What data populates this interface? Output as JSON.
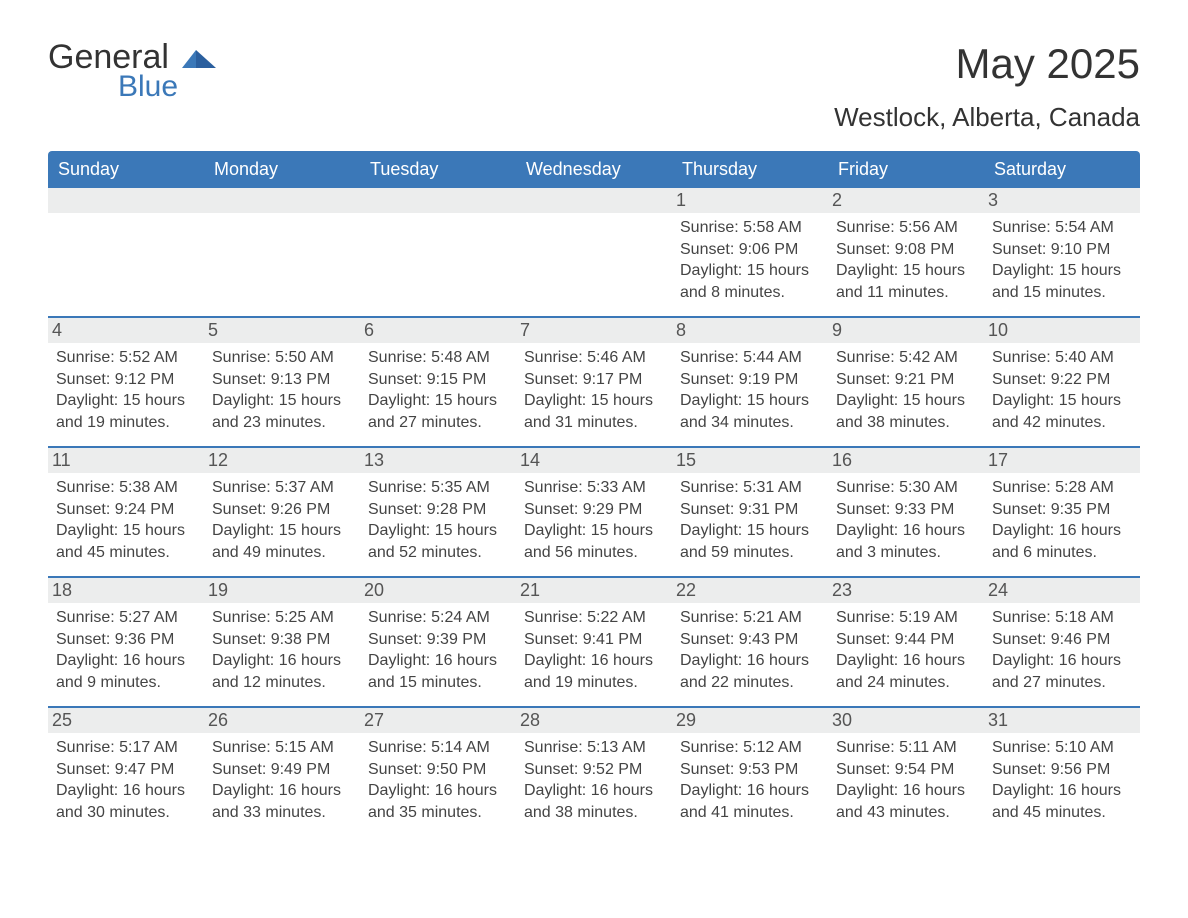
{
  "logo": {
    "word1": "General",
    "word2": "Blue",
    "text_color": "#333333",
    "accent_color": "#3b78b8"
  },
  "title": "May 2025",
  "location": "Westlock, Alberta, Canada",
  "colors": {
    "header_bg": "#3b78b8",
    "header_text": "#ffffff",
    "daynum_bg": "#eceded",
    "week_border": "#3b78b8",
    "body_text": "#444444",
    "background": "#ffffff"
  },
  "fonts": {
    "title_size_pt": 42,
    "location_size_pt": 26,
    "weekday_size_pt": 18,
    "daynum_size_pt": 18,
    "detail_size_pt": 16
  },
  "layout": {
    "columns": 7,
    "rows": 5
  },
  "weekdays": [
    "Sunday",
    "Monday",
    "Tuesday",
    "Wednesday",
    "Thursday",
    "Friday",
    "Saturday"
  ],
  "weeks": [
    [
      {
        "day": null
      },
      {
        "day": null
      },
      {
        "day": null
      },
      {
        "day": null
      },
      {
        "day": 1,
        "sunrise": "5:58 AM",
        "sunset": "9:06 PM",
        "daylight": "15 hours and 8 minutes."
      },
      {
        "day": 2,
        "sunrise": "5:56 AM",
        "sunset": "9:08 PM",
        "daylight": "15 hours and 11 minutes."
      },
      {
        "day": 3,
        "sunrise": "5:54 AM",
        "sunset": "9:10 PM",
        "daylight": "15 hours and 15 minutes."
      }
    ],
    [
      {
        "day": 4,
        "sunrise": "5:52 AM",
        "sunset": "9:12 PM",
        "daylight": "15 hours and 19 minutes."
      },
      {
        "day": 5,
        "sunrise": "5:50 AM",
        "sunset": "9:13 PM",
        "daylight": "15 hours and 23 minutes."
      },
      {
        "day": 6,
        "sunrise": "5:48 AM",
        "sunset": "9:15 PM",
        "daylight": "15 hours and 27 minutes."
      },
      {
        "day": 7,
        "sunrise": "5:46 AM",
        "sunset": "9:17 PM",
        "daylight": "15 hours and 31 minutes."
      },
      {
        "day": 8,
        "sunrise": "5:44 AM",
        "sunset": "9:19 PM",
        "daylight": "15 hours and 34 minutes."
      },
      {
        "day": 9,
        "sunrise": "5:42 AM",
        "sunset": "9:21 PM",
        "daylight": "15 hours and 38 minutes."
      },
      {
        "day": 10,
        "sunrise": "5:40 AM",
        "sunset": "9:22 PM",
        "daylight": "15 hours and 42 minutes."
      }
    ],
    [
      {
        "day": 11,
        "sunrise": "5:38 AM",
        "sunset": "9:24 PM",
        "daylight": "15 hours and 45 minutes."
      },
      {
        "day": 12,
        "sunrise": "5:37 AM",
        "sunset": "9:26 PM",
        "daylight": "15 hours and 49 minutes."
      },
      {
        "day": 13,
        "sunrise": "5:35 AM",
        "sunset": "9:28 PM",
        "daylight": "15 hours and 52 minutes."
      },
      {
        "day": 14,
        "sunrise": "5:33 AM",
        "sunset": "9:29 PM",
        "daylight": "15 hours and 56 minutes."
      },
      {
        "day": 15,
        "sunrise": "5:31 AM",
        "sunset": "9:31 PM",
        "daylight": "15 hours and 59 minutes."
      },
      {
        "day": 16,
        "sunrise": "5:30 AM",
        "sunset": "9:33 PM",
        "daylight": "16 hours and 3 minutes."
      },
      {
        "day": 17,
        "sunrise": "5:28 AM",
        "sunset": "9:35 PM",
        "daylight": "16 hours and 6 minutes."
      }
    ],
    [
      {
        "day": 18,
        "sunrise": "5:27 AM",
        "sunset": "9:36 PM",
        "daylight": "16 hours and 9 minutes."
      },
      {
        "day": 19,
        "sunrise": "5:25 AM",
        "sunset": "9:38 PM",
        "daylight": "16 hours and 12 minutes."
      },
      {
        "day": 20,
        "sunrise": "5:24 AM",
        "sunset": "9:39 PM",
        "daylight": "16 hours and 15 minutes."
      },
      {
        "day": 21,
        "sunrise": "5:22 AM",
        "sunset": "9:41 PM",
        "daylight": "16 hours and 19 minutes."
      },
      {
        "day": 22,
        "sunrise": "5:21 AM",
        "sunset": "9:43 PM",
        "daylight": "16 hours and 22 minutes."
      },
      {
        "day": 23,
        "sunrise": "5:19 AM",
        "sunset": "9:44 PM",
        "daylight": "16 hours and 24 minutes."
      },
      {
        "day": 24,
        "sunrise": "5:18 AM",
        "sunset": "9:46 PM",
        "daylight": "16 hours and 27 minutes."
      }
    ],
    [
      {
        "day": 25,
        "sunrise": "5:17 AM",
        "sunset": "9:47 PM",
        "daylight": "16 hours and 30 minutes."
      },
      {
        "day": 26,
        "sunrise": "5:15 AM",
        "sunset": "9:49 PM",
        "daylight": "16 hours and 33 minutes."
      },
      {
        "day": 27,
        "sunrise": "5:14 AM",
        "sunset": "9:50 PM",
        "daylight": "16 hours and 35 minutes."
      },
      {
        "day": 28,
        "sunrise": "5:13 AM",
        "sunset": "9:52 PM",
        "daylight": "16 hours and 38 minutes."
      },
      {
        "day": 29,
        "sunrise": "5:12 AM",
        "sunset": "9:53 PM",
        "daylight": "16 hours and 41 minutes."
      },
      {
        "day": 30,
        "sunrise": "5:11 AM",
        "sunset": "9:54 PM",
        "daylight": "16 hours and 43 minutes."
      },
      {
        "day": 31,
        "sunrise": "5:10 AM",
        "sunset": "9:56 PM",
        "daylight": "16 hours and 45 minutes."
      }
    ]
  ],
  "labels": {
    "sunrise": "Sunrise:",
    "sunset": "Sunset:",
    "daylight": "Daylight:"
  }
}
